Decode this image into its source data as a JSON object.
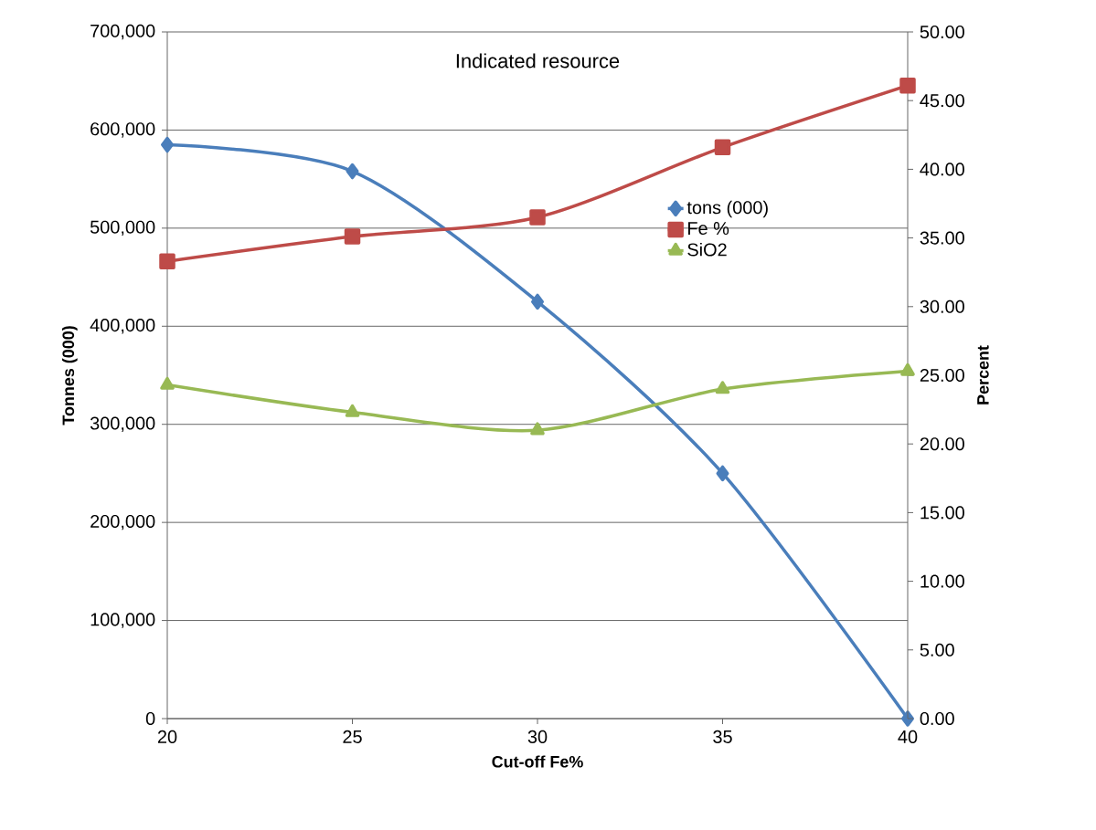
{
  "chart_data": {
    "type": "line",
    "title": "Indicated resource",
    "xlabel": "Cut-off Fe%",
    "ylabel": "Tonnes (000)",
    "y2label": "Percent",
    "x": [
      20,
      25,
      30,
      35,
      40
    ],
    "series": [
      {
        "name": "tons (000)",
        "color": "#4a7ebb",
        "marker": "diamond",
        "values": [
          585000,
          558000,
          425000,
          250000,
          0
        ]
      },
      {
        "name": "Fe %",
        "color": "#be4b48",
        "marker": "square",
        "axis": "y2",
        "values": [
          33.3,
          35.1,
          36.5,
          41.6,
          46.1
        ]
      },
      {
        "name": "SiO2",
        "color": "#98b954",
        "marker": "triangle",
        "axis": "y2",
        "values": [
          24.3,
          22.3,
          21.0,
          24.0,
          25.3
        ]
      }
    ],
    "xlim": [
      20,
      40
    ],
    "xticks": [
      20,
      25,
      30,
      35,
      40
    ],
    "ylim": [
      0,
      700000
    ],
    "yticks": [
      {
        "value": 0,
        "label": "0"
      },
      {
        "value": 100000,
        "label": "100,000"
      },
      {
        "value": 200000,
        "label": "200,000"
      },
      {
        "value": 300000,
        "label": "300,000"
      },
      {
        "value": 400000,
        "label": "400,000"
      },
      {
        "value": 500000,
        "label": "500,000"
      },
      {
        "value": 600000,
        "label": "600,000"
      },
      {
        "value": 700000,
        "label": "700,000"
      }
    ],
    "y2lim": [
      0,
      50
    ],
    "y2ticks": [
      {
        "value": 0,
        "label": "0.00"
      },
      {
        "value": 5,
        "label": "5.00"
      },
      {
        "value": 10,
        "label": "10.00"
      },
      {
        "value": 15,
        "label": "15.00"
      },
      {
        "value": 20,
        "label": "20.00"
      },
      {
        "value": 25,
        "label": "25.00"
      },
      {
        "value": 30,
        "label": "30.00"
      },
      {
        "value": 35,
        "label": "35.00"
      },
      {
        "value": 40,
        "label": "40.00"
      },
      {
        "value": 45,
        "label": "45.00"
      },
      {
        "value": 50,
        "label": "50.00"
      }
    ],
    "grid": "y",
    "legend": "top right",
    "line_style": "solid"
  }
}
